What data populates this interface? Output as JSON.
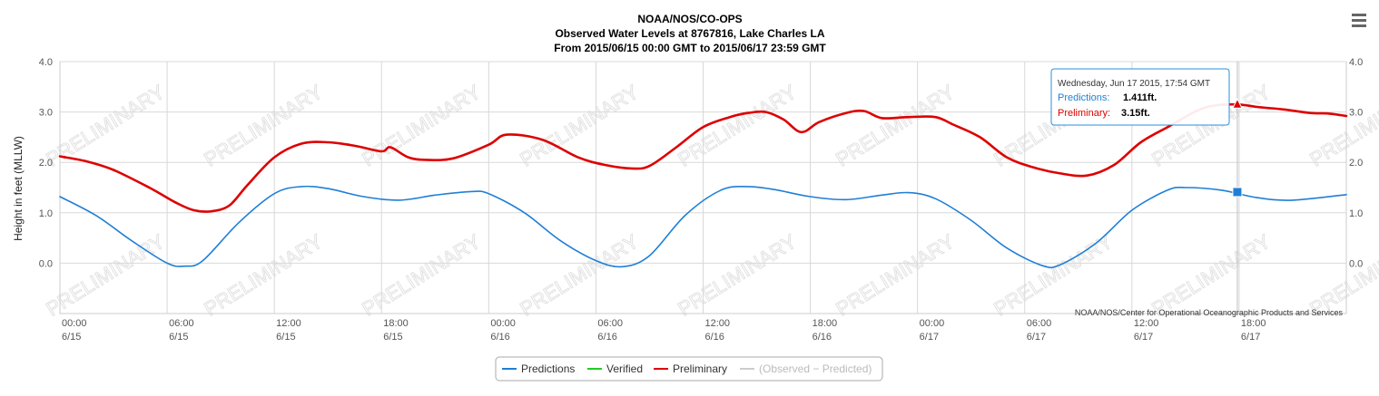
{
  "title": {
    "line1": "NOAA/NOS/CO-OPS",
    "line2": "Observed Water Levels at 8767816, Lake Charles LA",
    "line3": "From 2015/06/15 00:00 GMT to 2015/06/17 23:59 GMT"
  },
  "watermark_text": "PRELIMINARY",
  "credits": "NOAA/NOS/Center for Operational Oceanographic Products and Services",
  "menu_icon": "hamburger-menu-icon",
  "tooltip": {
    "header": "Wednesday, Jun 17 2015, 17:54 GMT",
    "predictions_label": "Predictions:",
    "predictions_value": "1.411ft.",
    "preliminary_label": "Preliminary:",
    "preliminary_value": "3.15ft.",
    "time_hours": 65.9
  },
  "legend": [
    {
      "label": "Predictions",
      "color": "#1f7fd6"
    },
    {
      "label": "Verified",
      "color": "#22cc22"
    },
    {
      "label": "Preliminary",
      "color": "#dd0000"
    },
    {
      "label": "(Observed − Predicted)",
      "color": "#cccccc",
      "disabled": true
    }
  ],
  "chart_data": {
    "type": "line",
    "title": "NOAA/NOS/CO-OPS",
    "ylabel": "Height in feet (MLLW)",
    "ylim": [
      -1.0,
      4.0
    ],
    "xlim_hours": [
      0,
      72
    ],
    "y_ticks": [
      "0.0",
      "1.0",
      "2.0",
      "3.0",
      "4.0"
    ],
    "x_ticks": [
      {
        "h": 0,
        "time": "00:00",
        "date": "6/15"
      },
      {
        "h": 6,
        "time": "06:00",
        "date": "6/15"
      },
      {
        "h": 12,
        "time": "12:00",
        "date": "6/15"
      },
      {
        "h": 18,
        "time": "18:00",
        "date": "6/15"
      },
      {
        "h": 24,
        "time": "00:00",
        "date": "6/16"
      },
      {
        "h": 30,
        "time": "06:00",
        "date": "6/16"
      },
      {
        "h": 36,
        "time": "12:00",
        "date": "6/16"
      },
      {
        "h": 42,
        "time": "18:00",
        "date": "6/16"
      },
      {
        "h": 48,
        "time": "00:00",
        "date": "6/17"
      },
      {
        "h": 54,
        "time": "06:00",
        "date": "6/17"
      },
      {
        "h": 60,
        "time": "12:00",
        "date": "6/17"
      },
      {
        "h": 66,
        "time": "18:00",
        "date": "6/17"
      }
    ],
    "grid": true,
    "legend_position": "bottom",
    "series": [
      {
        "name": "Predictions",
        "color": "#1f7fd6",
        "x_hours": [
          0,
          2,
          4,
          6,
          7,
          8,
          10,
          12,
          13.5,
          15,
          17,
          19,
          21,
          23,
          24,
          26,
          28,
          30,
          31.5,
          33,
          35,
          37,
          38.5,
          40,
          42,
          44,
          46,
          47.5,
          49,
          51,
          53,
          55,
          56,
          58,
          60,
          62,
          63,
          65,
          67,
          69,
          72
        ],
        "values": [
          1.32,
          0.95,
          0.45,
          0.0,
          -0.06,
          0.05,
          0.8,
          1.38,
          1.52,
          1.48,
          1.32,
          1.25,
          1.35,
          1.42,
          1.38,
          1.0,
          0.45,
          0.05,
          -0.07,
          0.15,
          0.95,
          1.45,
          1.52,
          1.46,
          1.32,
          1.26,
          1.35,
          1.4,
          1.28,
          0.85,
          0.3,
          -0.05,
          -0.03,
          0.4,
          1.05,
          1.45,
          1.5,
          1.45,
          1.3,
          1.25,
          1.36
        ]
      },
      {
        "name": "Preliminary",
        "color": "#dd0000",
        "x_hours": [
          0,
          1.5,
          3,
          5,
          6.5,
          7.5,
          8.5,
          9.5,
          10.5,
          12,
          13.5,
          15,
          16.5,
          18,
          18.5,
          19.5,
          20.5,
          22,
          24,
          25,
          27,
          29,
          30.5,
          32,
          33,
          34.5,
          36,
          37.5,
          38.5,
          39.5,
          40.5,
          41.5,
          42.5,
          44,
          45,
          46,
          47.5,
          49,
          50,
          51.5,
          53,
          54.5,
          56,
          57.5,
          59,
          60.5,
          62,
          63.5,
          64.5,
          65.9,
          67,
          68.5,
          70,
          71,
          72
        ],
        "values": [
          2.12,
          2.02,
          1.85,
          1.5,
          1.2,
          1.05,
          1.03,
          1.15,
          1.55,
          2.1,
          2.37,
          2.4,
          2.33,
          2.22,
          2.3,
          2.1,
          2.05,
          2.08,
          2.35,
          2.55,
          2.45,
          2.1,
          1.95,
          1.88,
          1.93,
          2.3,
          2.7,
          2.9,
          2.98,
          3.0,
          2.85,
          2.6,
          2.8,
          2.98,
          3.02,
          2.88,
          2.9,
          2.9,
          2.75,
          2.5,
          2.1,
          1.9,
          1.78,
          1.74,
          1.95,
          2.4,
          2.7,
          3.0,
          3.12,
          3.15,
          3.1,
          3.05,
          2.98,
          2.97,
          2.92
        ]
      }
    ]
  }
}
